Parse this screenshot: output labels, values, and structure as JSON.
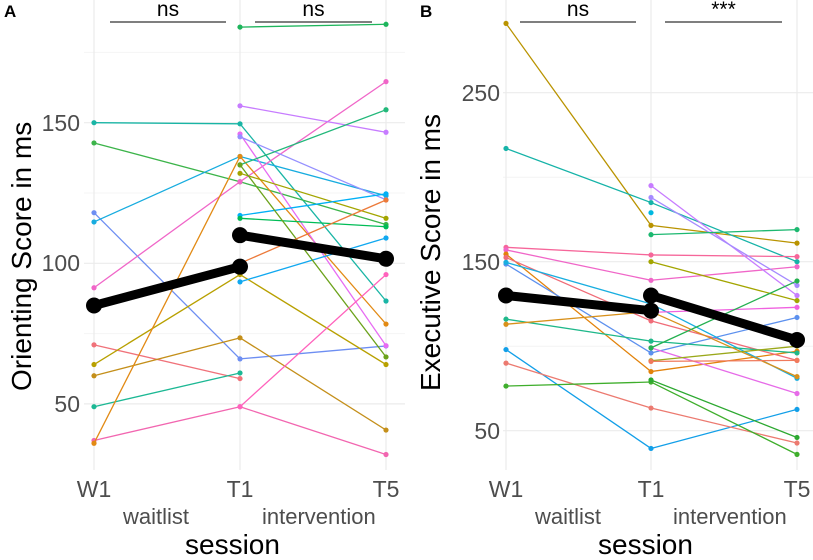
{
  "chart_data": [
    {
      "panel": "A",
      "type": "line",
      "ylabel": "Orienting Score in ms",
      "xlabel": "session",
      "x": [
        "W1",
        "T1",
        "T5"
      ],
      "group_labels": [
        "waitlist",
        "intervention"
      ],
      "yticks": [
        50,
        100,
        150
      ],
      "ylim": [
        27,
        193
      ],
      "significance": [
        "ns",
        "ns"
      ],
      "participants": [
        {
          "color": "#19b5a5",
          "values": [
            150,
            149.6,
            86.6
          ]
        },
        {
          "color": "#3cb44a",
          "values": [
            142.8,
            129,
            113.8
          ]
        },
        {
          "color": "#6d8ef2",
          "values": [
            118,
            66,
            70.6
          ]
        },
        {
          "color": "#17acdf",
          "values": [
            114.7,
            138,
            124
          ]
        },
        {
          "color": "#f066c8",
          "values": [
            91.3,
            129,
            164.6
          ]
        },
        {
          "color": "#f0727a",
          "values": [
            71,
            59,
            null
          ]
        },
        {
          "color": "#b8a000",
          "values": [
            64,
            96,
            64
          ]
        },
        {
          "color": "#c48f1a",
          "values": [
            60,
            73.5,
            40.7
          ]
        },
        {
          "color": "#1cb894",
          "values": [
            49,
            61,
            null
          ]
        },
        {
          "color": "#f266b0",
          "values": [
            37,
            49,
            32
          ]
        },
        {
          "color": "#e28a14",
          "values": [
            36,
            138,
            78.4
          ]
        },
        {
          "color": "#1eb55c",
          "values": [
            null,
            184,
            185
          ]
        },
        {
          "color": "#c77cff",
          "values": [
            null,
            156,
            146.6
          ]
        },
        {
          "color": "#e76bf3",
          "values": [
            null,
            146,
            70.7
          ]
        },
        {
          "color": "#9590ff",
          "values": [
            null,
            145,
            122.6
          ]
        },
        {
          "color": "#22b87a",
          "values": [
            null,
            135,
            154.6
          ]
        },
        {
          "color": "#a3a500",
          "values": [
            null,
            132,
            116
          ]
        },
        {
          "color": "#00b0f6",
          "values": [
            null,
            117,
            124.7
          ]
        },
        {
          "color": "#00bc56",
          "values": [
            null,
            116,
            113
          ]
        },
        {
          "color": "#10a8f0",
          "values": [
            null,
            93.4,
            109
          ]
        },
        {
          "color": "#6ba21a",
          "values": [
            null,
            135,
            66.7
          ]
        },
        {
          "color": "#ec7a3a",
          "values": [
            null,
            100,
            122.5
          ]
        },
        {
          "color": "#ff62bc",
          "values": [
            null,
            49,
            96
          ]
        }
      ],
      "mean": {
        "waitlist": [
          85,
          98.8
        ],
        "intervention": [
          110,
          101.6
        ]
      }
    },
    {
      "panel": "B",
      "type": "line",
      "ylabel": "Executive Score in ms",
      "xlabel": "session",
      "x": [
        "W1",
        "T1",
        "T5"
      ],
      "group_labels": [
        "waitlist",
        "intervention"
      ],
      "yticks": [
        50,
        150,
        250
      ],
      "ylim": [
        23,
        297
      ],
      "significance": [
        "ns",
        "***"
      ],
      "participants": [
        {
          "color": "#b99300",
          "values": [
            291,
            171.5,
            161
          ]
        },
        {
          "color": "#16b3a8",
          "values": [
            217,
            185,
            150
          ]
        },
        {
          "color": "#f6669a",
          "values": [
            158.5,
            154,
            153
          ]
        },
        {
          "color": "#f066c8",
          "values": [
            157,
            139,
            147
          ]
        },
        {
          "color": "#e2820a",
          "values": [
            154.5,
            85,
            97
          ]
        },
        {
          "color": "#f06c78",
          "values": [
            152.5,
            115,
            91.6
          ]
        },
        {
          "color": "#5c90ee",
          "values": [
            148.6,
            96,
            117
          ]
        },
        {
          "color": "#18aee0",
          "values": [
            149.6,
            125,
            81
          ]
        },
        {
          "color": "#1fb88a",
          "values": [
            116,
            103,
            96
          ]
        },
        {
          "color": "#d8901a",
          "values": [
            113,
            120.5,
            82
          ]
        },
        {
          "color": "#129fe8",
          "values": [
            98,
            39.5,
            62.6
          ]
        },
        {
          "color": "#ec7a70",
          "values": [
            90,
            63.4,
            42.7
          ]
        },
        {
          "color": "#3fae2c",
          "values": [
            76.4,
            78.8,
            36
          ]
        },
        {
          "color": "#c77cff",
          "values": [
            null,
            195,
            130
          ]
        },
        {
          "color": "#a58aff",
          "values": [
            null,
            188,
            136
          ]
        },
        {
          "color": "#00b8e0",
          "values": [
            null,
            179,
            null
          ]
        },
        {
          "color": "#1cb870",
          "values": [
            null,
            166,
            169
          ]
        },
        {
          "color": "#a3a500",
          "values": [
            null,
            150,
            127
          ]
        },
        {
          "color": "#f062e0",
          "values": [
            null,
            120,
            123
          ]
        },
        {
          "color": "#e66be8",
          "values": [
            null,
            99,
            72
          ]
        },
        {
          "color": "#24b050",
          "values": [
            null,
            99,
            138.6
          ]
        },
        {
          "color": "#9aa81a",
          "values": [
            null,
            91.4,
            100
          ]
        },
        {
          "color": "#2ca830",
          "values": [
            null,
            80,
            46
          ]
        },
        {
          "color": "#f07a5c",
          "values": [
            null,
            91,
            91.6
          ]
        }
      ],
      "mean": {
        "waitlist": [
          130,
          121
        ],
        "intervention": [
          130,
          103.7
        ]
      }
    }
  ]
}
